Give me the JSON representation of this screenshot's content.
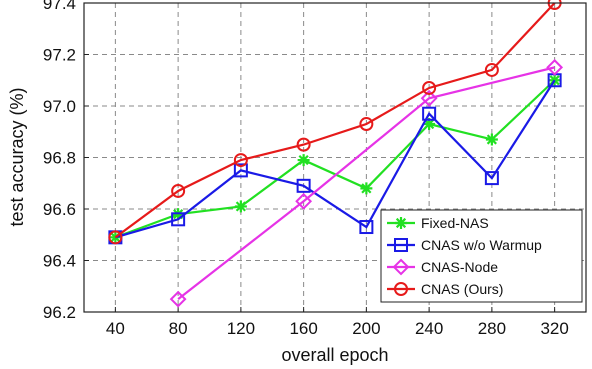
{
  "chart_data": {
    "type": "line",
    "xlabel": "overall epoch",
    "ylabel": "test accuracy (%)",
    "x": [
      40,
      80,
      120,
      160,
      200,
      240,
      280,
      320
    ],
    "xlim": [
      20,
      340
    ],
    "ylim": [
      96.2,
      97.4
    ],
    "yticks": [
      96.2,
      96.4,
      96.6,
      96.8,
      97.0,
      97.2,
      97.4
    ],
    "ytick_labels": [
      "96.2",
      "96.4",
      "96.6",
      "96.8",
      "97.0",
      "97.2",
      "97.4"
    ],
    "grid": true,
    "legend_position": "bottom-right",
    "series": [
      {
        "name": "Fixed-NAS",
        "color": "#22e022",
        "marker": "asterisk",
        "x": [
          40,
          80,
          120,
          160,
          200,
          240,
          280,
          320
        ],
        "values": [
          96.49,
          96.58,
          96.61,
          96.79,
          96.68,
          96.93,
          96.87,
          97.1
        ]
      },
      {
        "name": "CNAS w/o Warmup",
        "color": "#1a1ae6",
        "marker": "square",
        "x": [
          40,
          80,
          120,
          160,
          200,
          240,
          280,
          320
        ],
        "values": [
          96.49,
          96.56,
          96.75,
          96.69,
          96.53,
          96.97,
          96.72,
          97.1
        ]
      },
      {
        "name": "CNAS-Node",
        "color": "#e633e6",
        "marker": "diamond",
        "x": [
          80,
          160,
          240,
          320
        ],
        "values": [
          96.25,
          96.63,
          97.03,
          97.15
        ]
      },
      {
        "name": "CNAS (Ours)",
        "color": "#e61a1a",
        "marker": "circle",
        "x": [
          40,
          80,
          120,
          160,
          200,
          240,
          280,
          320
        ],
        "values": [
          96.49,
          96.67,
          96.79,
          96.85,
          96.93,
          97.07,
          97.14,
          97.4
        ]
      }
    ]
  }
}
